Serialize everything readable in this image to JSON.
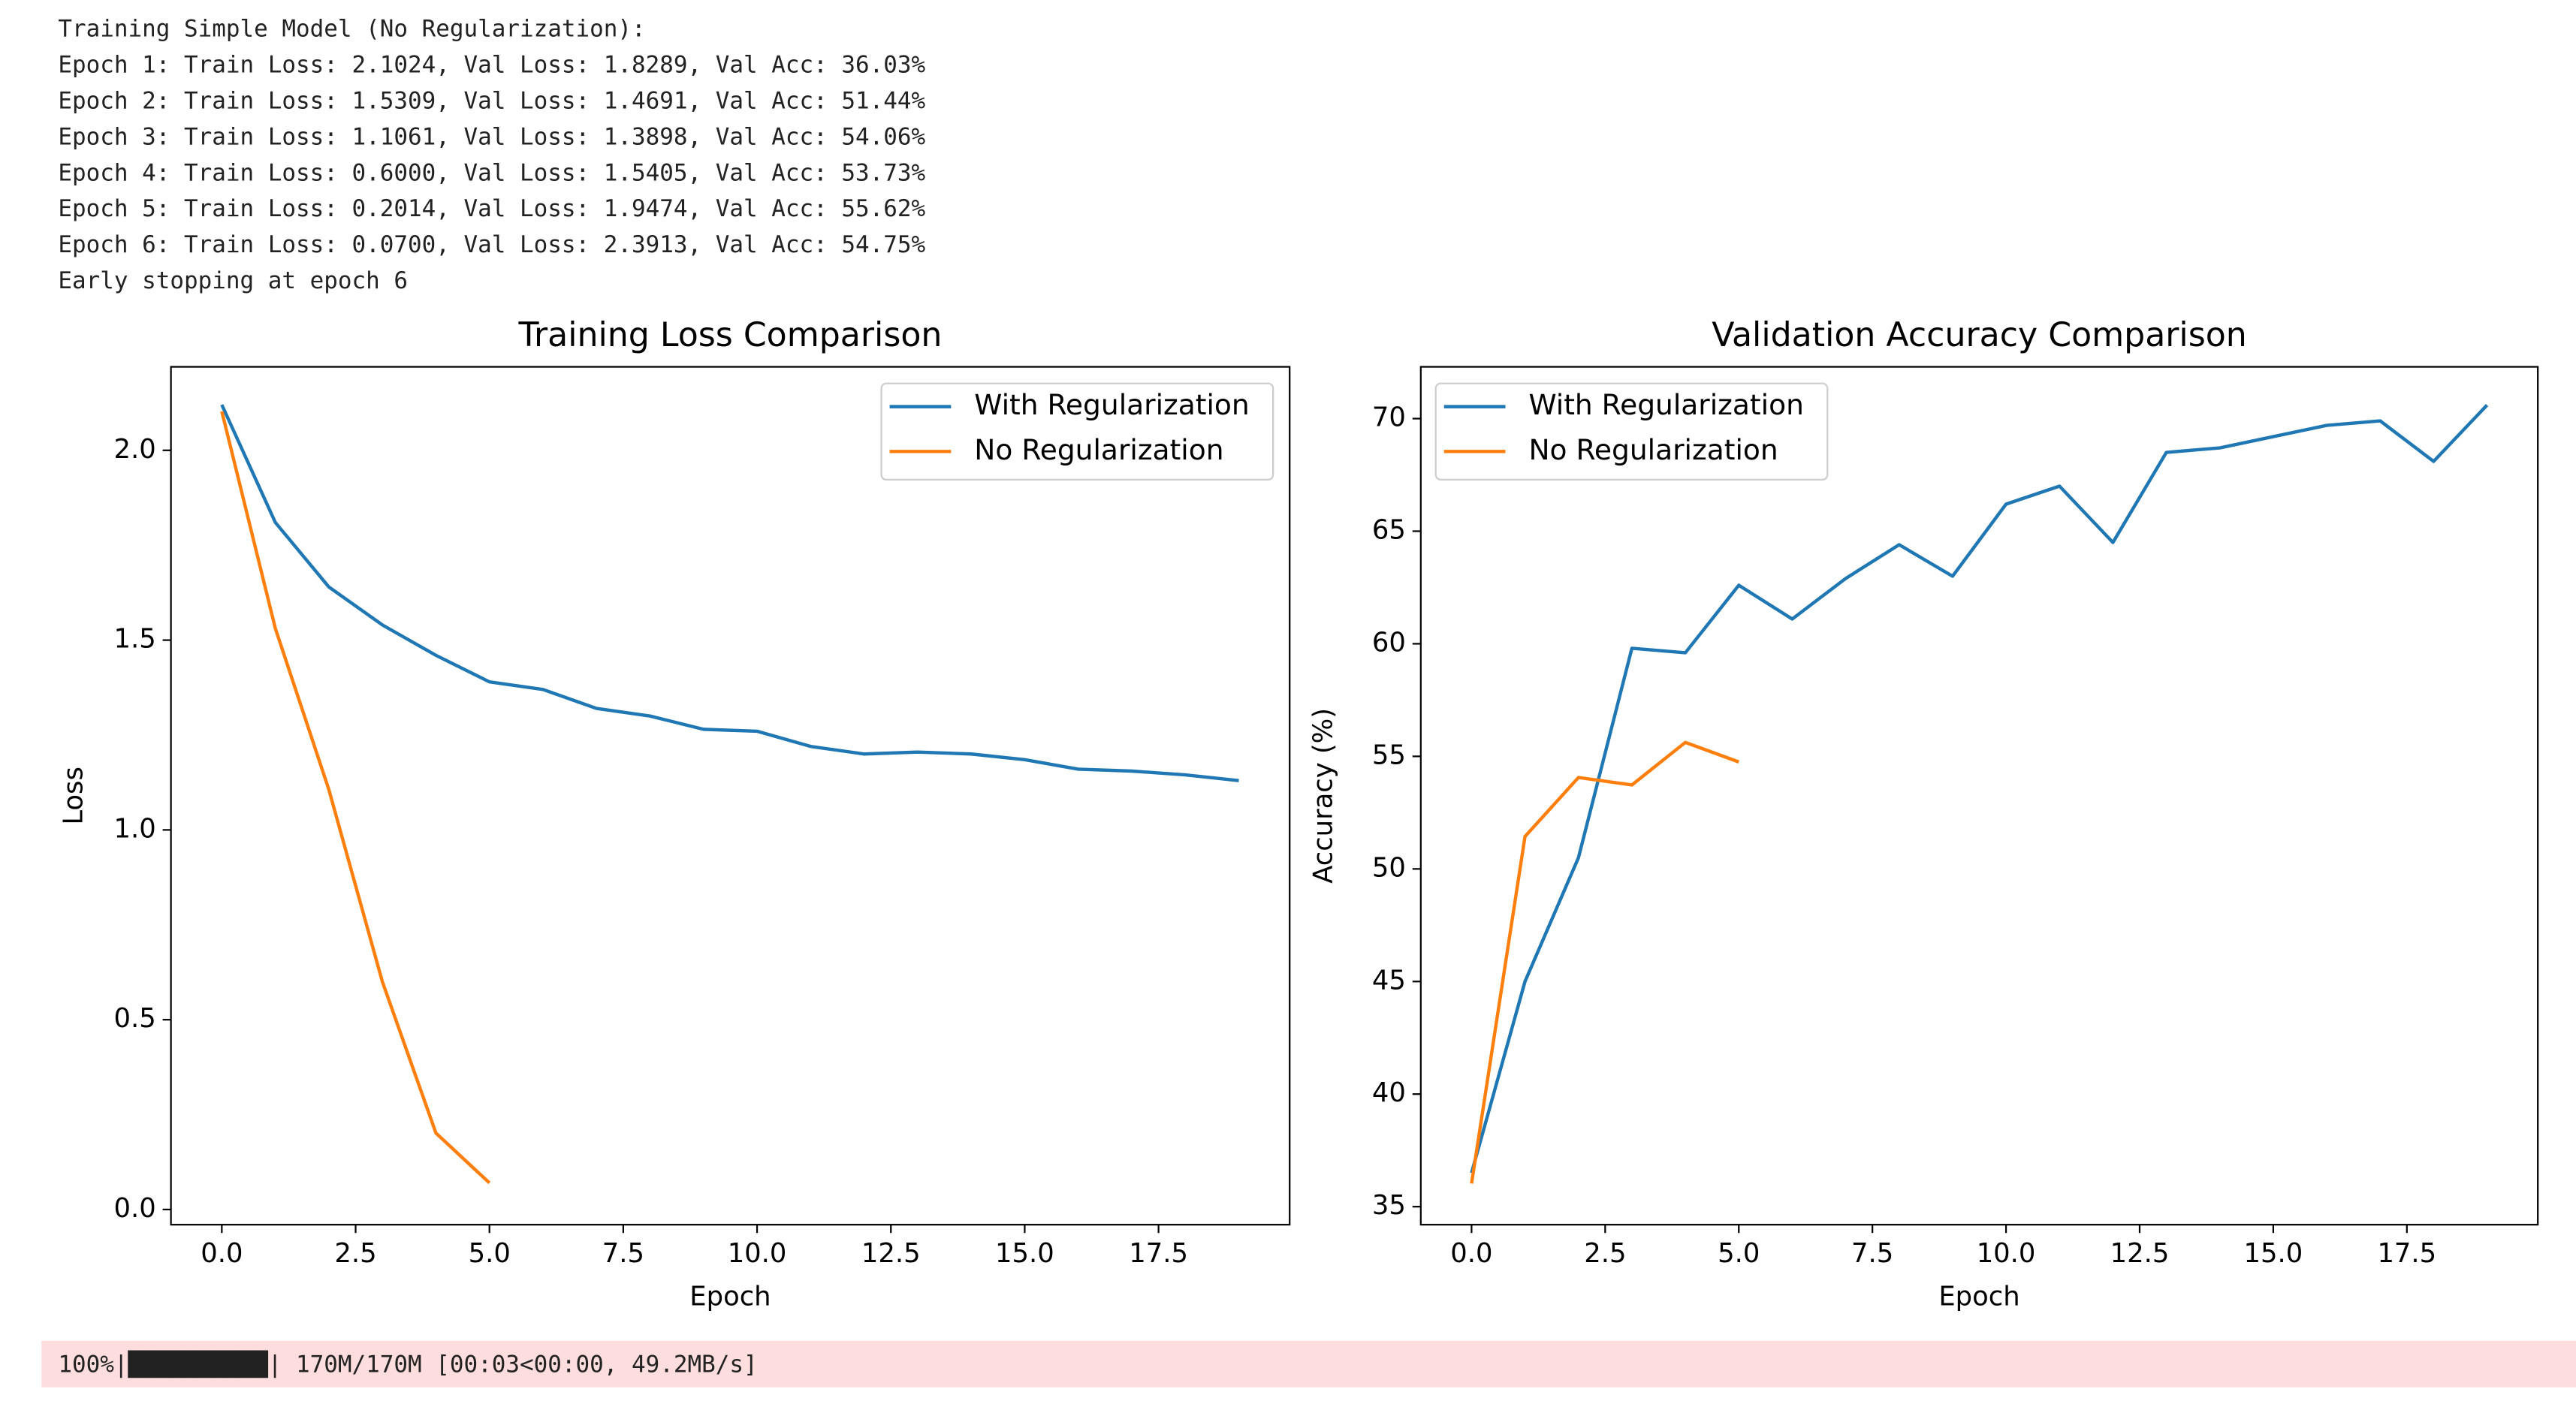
{
  "console": {
    "lines": [
      "Training Simple Model (No Regularization):",
      "Epoch 1: Train Loss: 2.1024, Val Loss: 1.8289, Val Acc: 36.03%",
      "Epoch 2: Train Loss: 1.5309, Val Loss: 1.4691, Val Acc: 51.44%",
      "Epoch 3: Train Loss: 1.1061, Val Loss: 1.3898, Val Acc: 54.06%",
      "Epoch 4: Train Loss: 0.6000, Val Loss: 1.5405, Val Acc: 53.73%",
      "Epoch 5: Train Loss: 0.2014, Val Loss: 1.9474, Val Acc: 55.62%",
      "Epoch 6: Train Loss: 0.0700, Val Loss: 2.3913, Val Acc: 54.75%",
      "Early stopping at epoch 6"
    ]
  },
  "chart_data": [
    {
      "type": "line",
      "title": "Training Loss Comparison",
      "x_label": "Epoch",
      "y_label": "Loss",
      "xlim": [
        -0.95,
        19.95
      ],
      "ylim": [
        -0.04,
        2.22
      ],
      "xticks": [
        {
          "value": 0,
          "label": "0.0"
        },
        2.5,
        {
          "value": 5,
          "label": "5.0"
        },
        7.5,
        {
          "value": 10,
          "label": "10.0"
        },
        12.5,
        {
          "value": 15,
          "label": "15.0"
        },
        17.5
      ],
      "yticks": [
        {
          "value": 0,
          "label": "0.0"
        },
        0.5,
        {
          "value": 1,
          "label": "1.0"
        },
        1.5,
        {
          "value": 2,
          "label": "2.0"
        }
      ],
      "legend": "upper right",
      "series": [
        {
          "name": "With Regularization",
          "color": "#1f77b4",
          "x": [
            0,
            1,
            2,
            3,
            4,
            5,
            6,
            7,
            8,
            9,
            10,
            11,
            12,
            13,
            14,
            15,
            16,
            17,
            18,
            19
          ],
          "values": [
            2.12,
            1.81,
            1.64,
            1.54,
            1.46,
            1.39,
            1.37,
            1.32,
            1.3,
            1.265,
            1.26,
            1.22,
            1.2,
            1.205,
            1.2,
            1.185,
            1.16,
            1.155,
            1.145,
            1.13
          ]
        },
        {
          "name": "No Regularization",
          "color": "#ff7f0e",
          "x": [
            0,
            1,
            2,
            3,
            4,
            5
          ],
          "values": [
            2.1024,
            1.5309,
            1.1061,
            0.6,
            0.2014,
            0.07
          ]
        }
      ]
    },
    {
      "type": "line",
      "title": "Validation Accuracy Comparison",
      "x_label": "Epoch",
      "y_label": "Accuracy (%)",
      "xlim": [
        -0.95,
        19.95
      ],
      "ylim": [
        34.2,
        72.3
      ],
      "xticks": [
        {
          "value": 0,
          "label": "0.0"
        },
        2.5,
        {
          "value": 5,
          "label": "5.0"
        },
        7.5,
        {
          "value": 10,
          "label": "10.0"
        },
        12.5,
        {
          "value": 15,
          "label": "15.0"
        },
        17.5
      ],
      "yticks": [
        35,
        40,
        45,
        50,
        55,
        60,
        65,
        70
      ],
      "legend": "upper left",
      "series": [
        {
          "name": "With Regularization",
          "color": "#1f77b4",
          "x": [
            0,
            1,
            2,
            3,
            4,
            5,
            6,
            7,
            8,
            9,
            10,
            11,
            12,
            13,
            14,
            15,
            16,
            17,
            18,
            19
          ],
          "values": [
            36.5,
            45,
            50.5,
            59.8,
            59.6,
            62.6,
            61.1,
            62.9,
            64.4,
            63,
            66.2,
            67,
            64.5,
            68.5,
            68.7,
            69.2,
            69.7,
            69.9,
            68.1,
            70.6
          ]
        },
        {
          "name": "No Regularization",
          "color": "#ff7f0e",
          "x": [
            0,
            1,
            2,
            3,
            4,
            5
          ],
          "values": [
            36.03,
            51.44,
            54.06,
            53.73,
            55.62,
            54.75
          ]
        }
      ]
    }
  ],
  "progress": {
    "text": "100%|██████████| 170M/170M [00:03<00:00, 49.2MB/s]"
  }
}
